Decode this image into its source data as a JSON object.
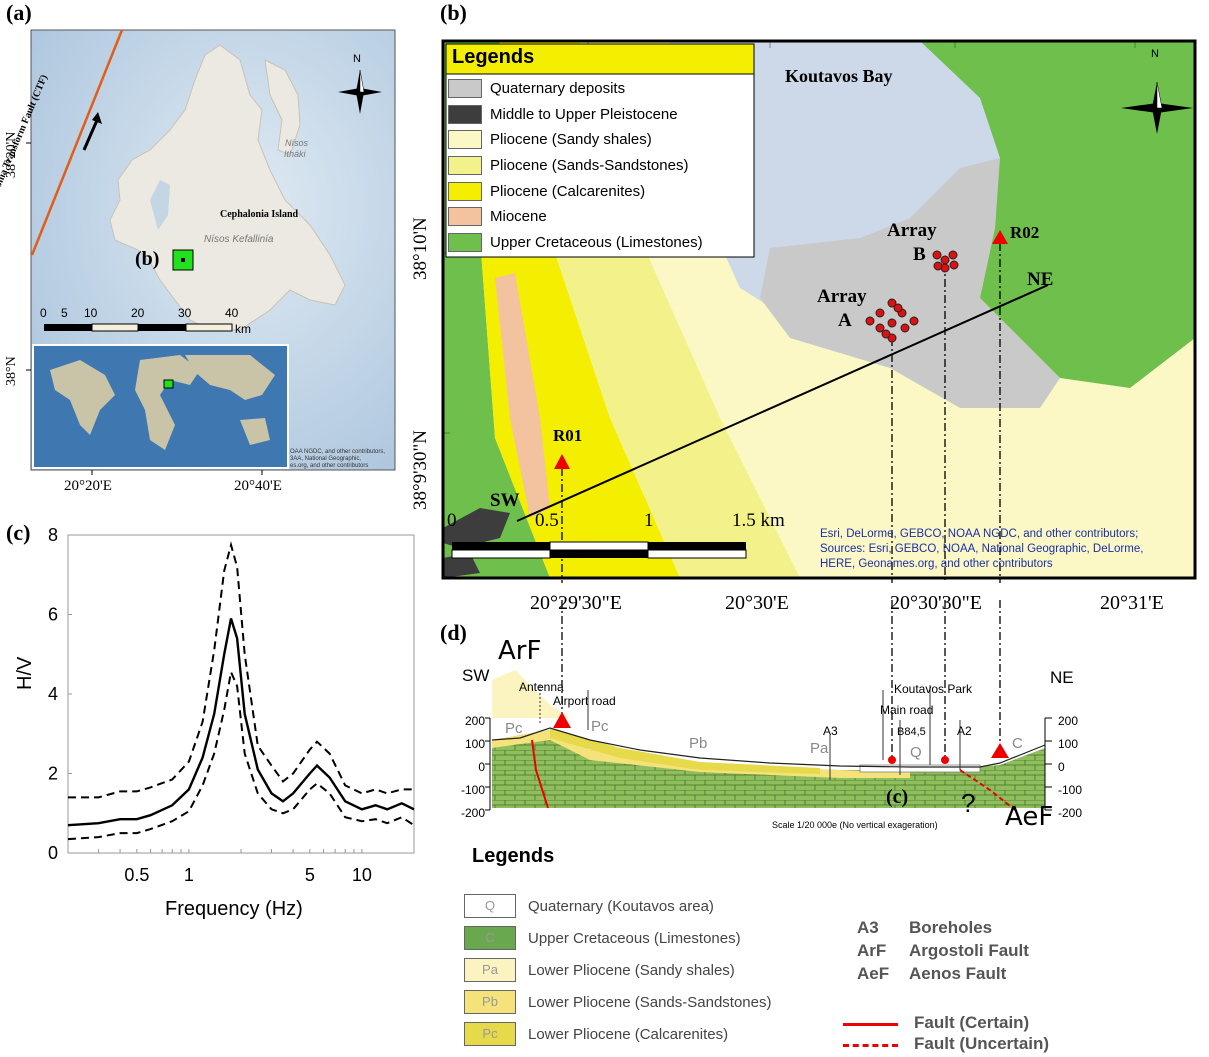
{
  "panel_a": {
    "label": "(a)",
    "island_label": "Cephalonia Island",
    "nisos_kefallinia": "Nísos Kefallinía",
    "nisos_ithaki_1": "Nísos",
    "nisos_ithaki_2": "Itháki",
    "fault_label": "Cephalonia Transform Fault (CTF)",
    "inset_marker": "(b)",
    "north": "N",
    "scale_ticks": [
      "0",
      "5",
      "10",
      "20",
      "30",
      "40"
    ],
    "scale_unit": "km",
    "lat_top": "38°20'N",
    "lat_bottom": "38°N",
    "lon_left": "20°20'E",
    "lon_right": "20°40'E",
    "world_credit": [
      "OAA NGDC, and other contributors,",
      "3AA, National Geographic,",
      "es.org, and other contributors"
    ]
  },
  "panel_b": {
    "label": "(b)",
    "legend_title": "Legends",
    "legend_items": [
      {
        "label": "Quaternary deposits",
        "color": "#c9c9c9"
      },
      {
        "label": "Middle to Upper Pleistocene",
        "color": "#3d3d3d"
      },
      {
        "label": "Pliocene (Sandy shales)",
        "color": "#fbf8c5"
      },
      {
        "label": "Pliocene (Sands-Sandstones)",
        "color": "#f3f18a"
      },
      {
        "label": "Pliocene (Calcarenites)",
        "color": "#f4ee00"
      },
      {
        "label": "Miocene",
        "color": "#f2c39e"
      },
      {
        "label": "Upper Cretaceous (Limestones)",
        "color": "#6ebf4b"
      }
    ],
    "bay_label": "Koutavos Bay",
    "north": "N",
    "array_a": [
      "Array",
      "A"
    ],
    "array_b": [
      "Array",
      "B"
    ],
    "r01": "R01",
    "r02": "R02",
    "sw": "SW",
    "ne": "NE",
    "scale_ticks": [
      "0",
      "0.5",
      "1",
      "1.5 km"
    ],
    "credit": [
      "Esri, DeLorme, GEBCO, NOAA NGDC, and other contributors;",
      "Sources: Esri, GEBCO, NOAA, National Geographic, DeLorme,",
      "HERE, Geonames.org, and other contributors"
    ],
    "lat_labels": [
      "38°10'N",
      "38°9'30\"N"
    ],
    "lon_labels": [
      "20°29'30\"E",
      "20°30'E",
      "20°30'30\"E",
      "20°31'E"
    ]
  },
  "panel_c": {
    "label": "(c)",
    "ylabel": "H/V",
    "xlabel": "Frequency (Hz)",
    "y_ticks": [
      "0",
      "2",
      "4",
      "6",
      "8"
    ],
    "x_ticks": [
      "0.5",
      "1",
      "5",
      "10"
    ]
  },
  "chart_data": {
    "type": "line",
    "xlabel": "Frequency (Hz)",
    "ylabel": "H/V",
    "xscale": "log",
    "xlim": [
      0.2,
      20
    ],
    "ylim": [
      0,
      8
    ],
    "grid": false,
    "x": [
      0.2,
      0.3,
      0.4,
      0.5,
      0.6,
      0.8,
      1.0,
      1.2,
      1.4,
      1.6,
      1.75,
      1.9,
      2.1,
      2.5,
      3.0,
      3.5,
      4.0,
      5.0,
      5.5,
      6.5,
      8.0,
      10.0,
      12.0,
      14.0,
      17.0,
      20.0
    ],
    "series": [
      {
        "values": [
          0.7,
          0.75,
          0.85,
          0.85,
          0.95,
          1.2,
          1.6,
          2.4,
          3.5,
          5.0,
          5.9,
          5.4,
          3.5,
          2.1,
          1.5,
          1.3,
          1.5,
          2.0,
          2.2,
          1.9,
          1.3,
          1.1,
          1.2,
          1.1,
          1.25,
          1.1
        ]
      },
      {
        "values": [
          1.4,
          1.4,
          1.55,
          1.55,
          1.65,
          1.85,
          2.3,
          3.3,
          5.1,
          7.1,
          7.75,
          7.2,
          5.0,
          2.7,
          2.2,
          1.8,
          2.0,
          2.6,
          2.8,
          2.5,
          1.7,
          1.5,
          1.6,
          1.5,
          1.6,
          1.6
        ]
      },
      {
        "values": [
          0.35,
          0.4,
          0.5,
          0.5,
          0.6,
          0.8,
          1.05,
          1.7,
          2.5,
          3.6,
          4.55,
          4.2,
          2.5,
          1.5,
          1.1,
          1.0,
          1.1,
          1.6,
          1.75,
          1.5,
          0.9,
          0.8,
          0.85,
          0.75,
          0.9,
          0.7
        ]
      }
    ]
  },
  "panel_d": {
    "label": "(d)",
    "arf": "ArF",
    "aef": "AeF",
    "sw": "SW",
    "ne": "NE",
    "antenna": "Antenna",
    "airport_road": "Airport road",
    "main_road": "Main road",
    "koutavos_park": "Koutavos Park",
    "a3": "A3",
    "a2": "A2",
    "b84": "B84,5",
    "unit_pa": "Pa",
    "unit_pb": "Pb",
    "unit_pc": "Pc",
    "unit_q": "Q",
    "unit_c": "C",
    "question": "?",
    "c_marker": "(c)",
    "y_ticks": [
      "200",
      "100",
      "0",
      "-100",
      "-200"
    ],
    "scale_note": "Scale 1/20 000e (No vertical exageration)"
  },
  "legend2": {
    "title": "Legends",
    "items": [
      {
        "symbol": "Q",
        "label": "Quaternary (Koutavos area)",
        "color": "#ffffff"
      },
      {
        "symbol": "C",
        "label": "Upper Cretaceous (Limestones)",
        "color": "#6aa84f"
      },
      {
        "symbol": "Pa",
        "label": "Lower Pliocene (Sandy shales)",
        "color": "#fbf3c0"
      },
      {
        "symbol": "Pb",
        "label": "Lower Pliocene (Sands-Sandstones)",
        "color": "#f5e27a"
      },
      {
        "symbol": "Pc",
        "label": "Lower Pliocene (Calcarenites)",
        "color": "#e6d94a"
      }
    ],
    "keys": [
      {
        "code": "A3",
        "label": "Boreholes"
      },
      {
        "code": "ArF",
        "label": "Argostoli Fault"
      },
      {
        "code": "AeF",
        "label": "Aenos Fault"
      }
    ],
    "fault_certain": "Fault (Certain)",
    "fault_uncertain": "Fault (Uncertain)"
  }
}
